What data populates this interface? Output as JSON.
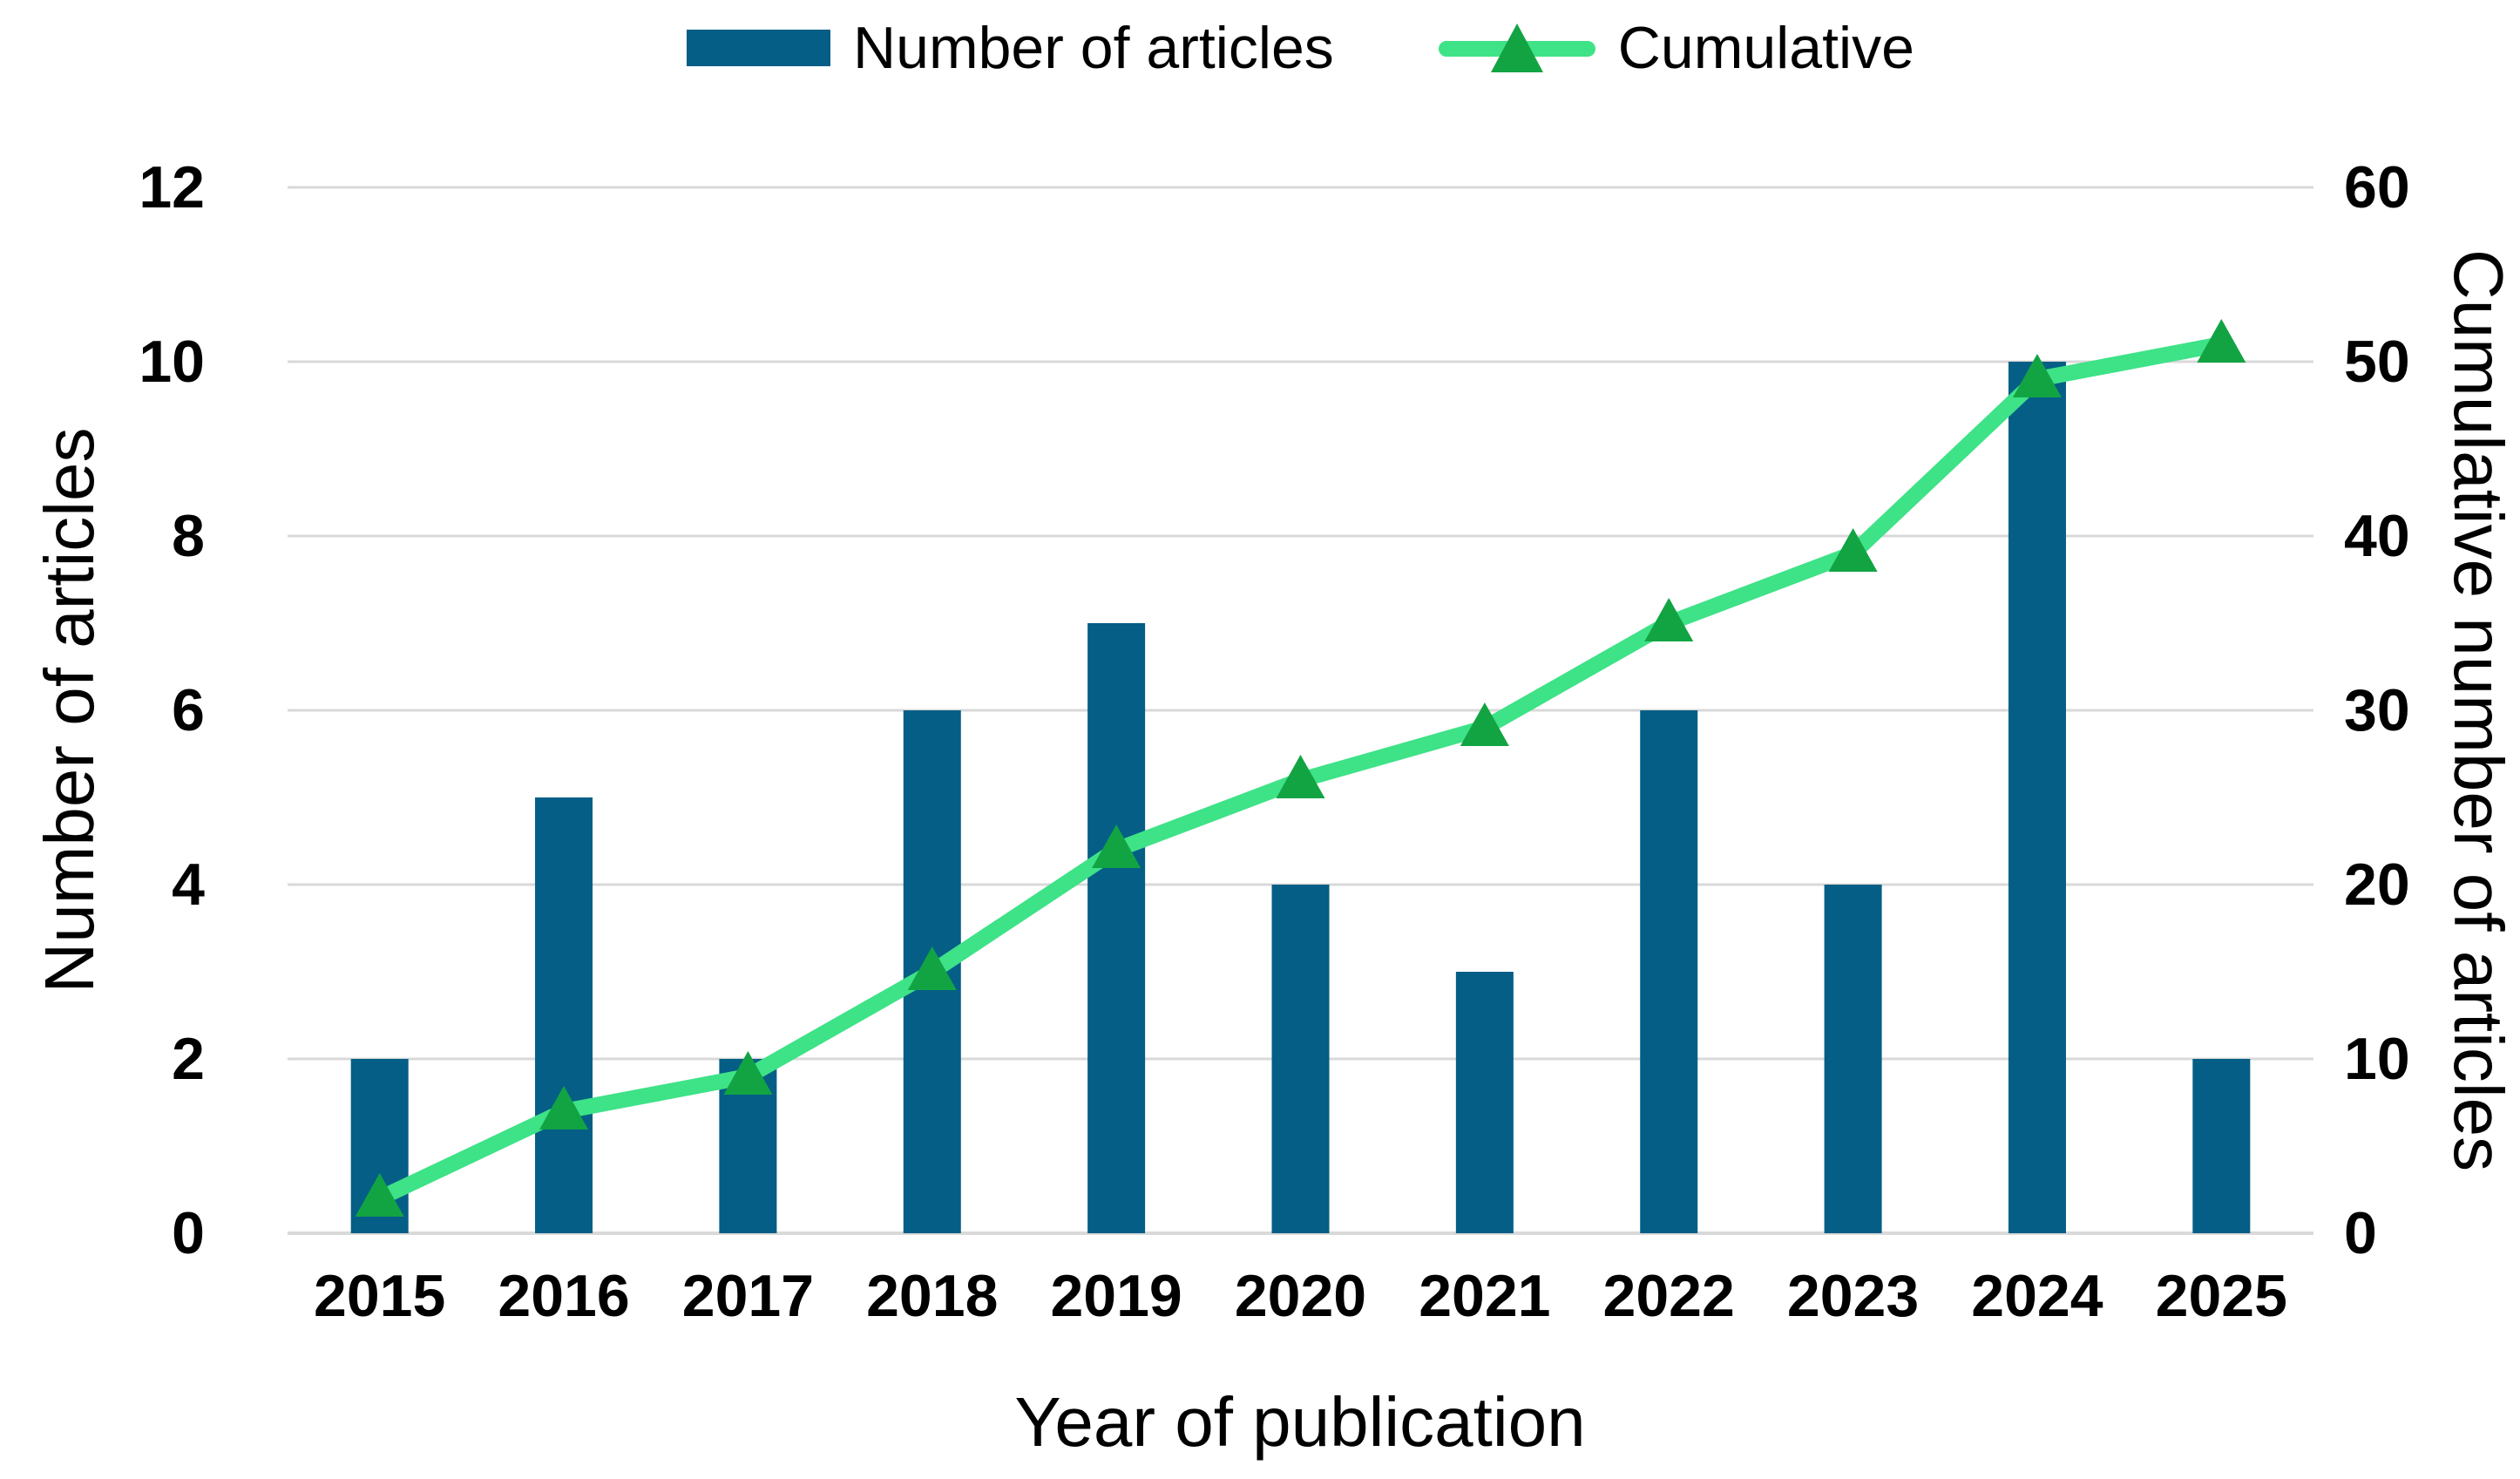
{
  "legend": {
    "items": [
      {
        "label": "Number of articles",
        "swatch": "bar"
      },
      {
        "label": "Cumulative",
        "swatch": "line-triangle"
      }
    ]
  },
  "chart_data": {
    "type": "bar+line",
    "categories": [
      "2015",
      "2016",
      "2017",
      "2018",
      "2019",
      "2020",
      "2021",
      "2022",
      "2023",
      "2024",
      "2025"
    ],
    "series": [
      {
        "name": "Number of articles",
        "type": "bar",
        "axis": "left",
        "values": [
          2,
          5,
          2,
          6,
          7,
          4,
          3,
          6,
          4,
          10,
          2
        ],
        "color": "#045E86"
      },
      {
        "name": "Cumulative",
        "type": "line",
        "axis": "right",
        "values": [
          2,
          7,
          9,
          15,
          22,
          26,
          29,
          35,
          39,
          49,
          51
        ],
        "line_color": "#3EE287",
        "marker": "triangle-up",
        "marker_color": "#12A443"
      }
    ],
    "left_axis": {
      "title": "Number of articles",
      "ticks": [
        "12",
        "10",
        "8",
        "6",
        "4",
        "2",
        "0"
      ],
      "min": 0,
      "max": 12
    },
    "right_axis": {
      "title": "Cumulative number of articles",
      "ticks": [
        "60",
        "50",
        "40",
        "30",
        "20",
        "10",
        "0"
      ],
      "min": 0,
      "max": 60
    },
    "x_axis": {
      "title": "Year of publication"
    },
    "grid": {
      "horizontal": true,
      "color": "#D9D9D9",
      "baseline_color": "#D9D9D9"
    },
    "legend_position": "top-center",
    "background": "#FFFFFF"
  }
}
